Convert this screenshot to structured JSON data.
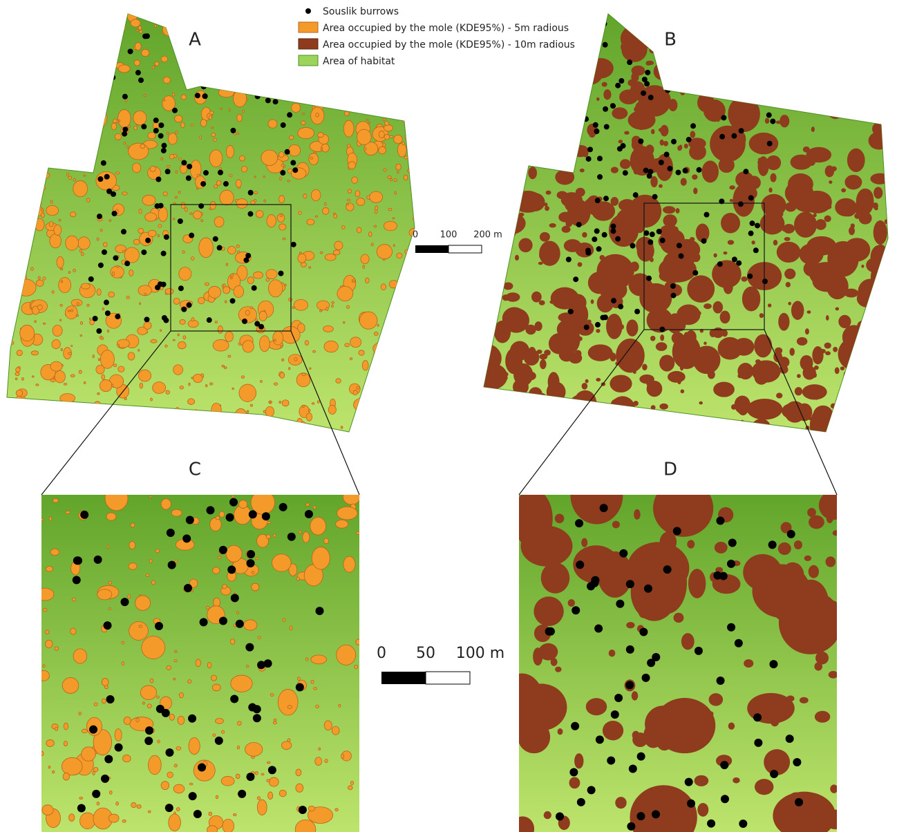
{
  "legend": {
    "items": [
      {
        "label": "Souslik burrows"
      },
      {
        "label": "Area occupied by the mole (KDE95%) - 5m radious"
      },
      {
        "label": "Area occupied by the mole (KDE95%) - 10m radious"
      },
      {
        "label": "Area of habitat"
      }
    ]
  },
  "panels": [
    {
      "label": "A"
    },
    {
      "label": "B"
    },
    {
      "label": "C"
    },
    {
      "label": "D"
    }
  ],
  "scale_bars": [
    {
      "labels": [
        "0",
        "100",
        "200 m"
      ]
    },
    {
      "labels": [
        "0",
        "50",
        "100 m"
      ]
    }
  ]
}
